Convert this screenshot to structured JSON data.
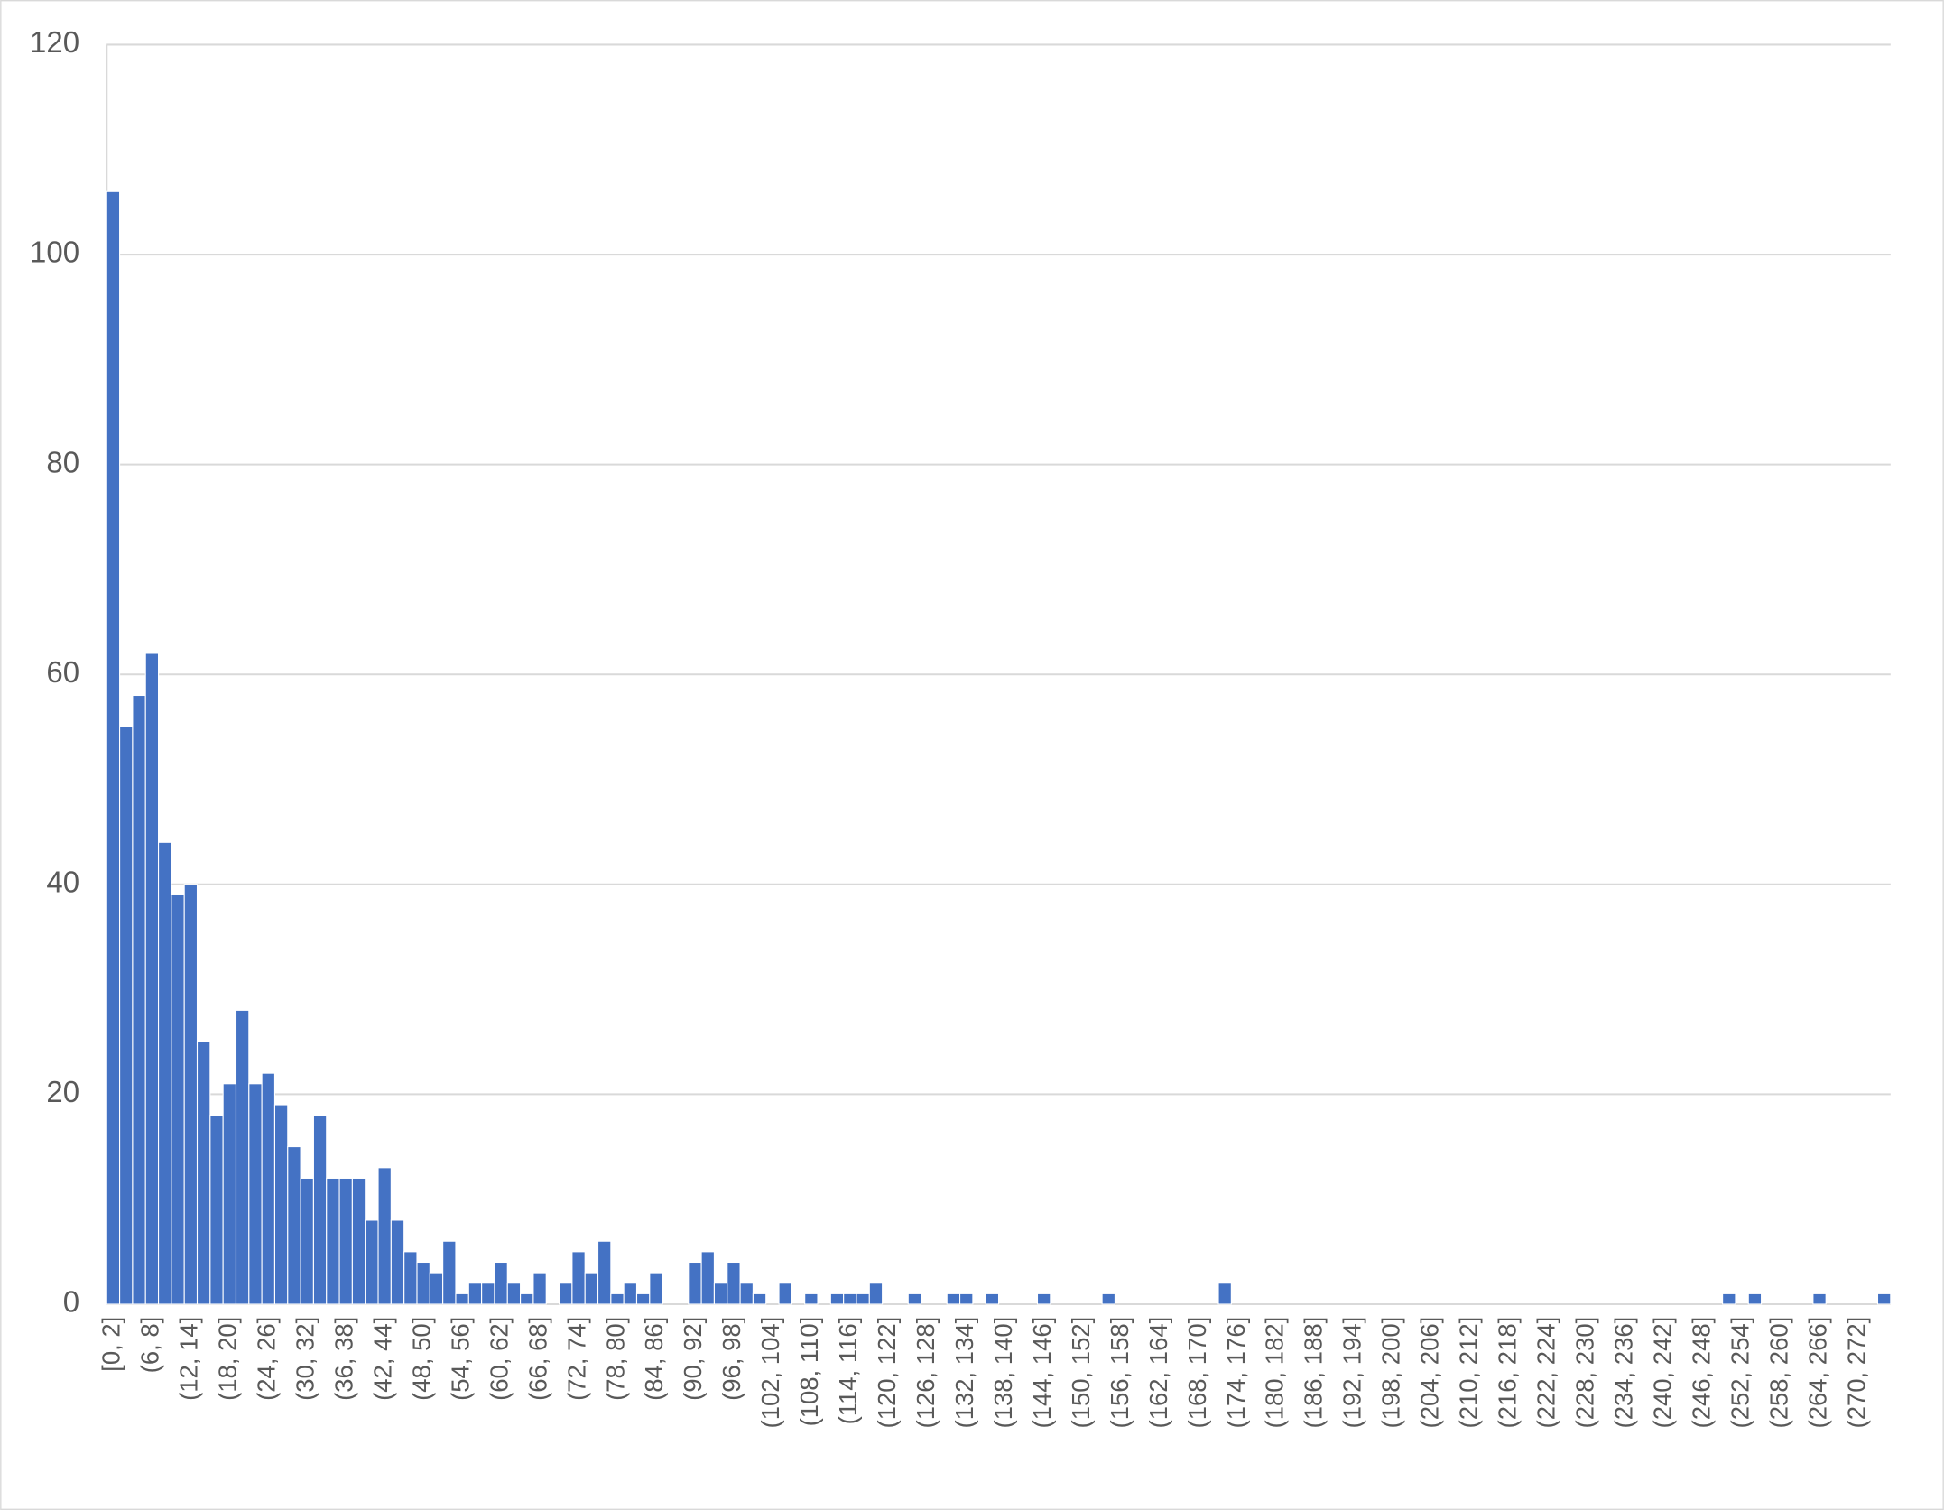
{
  "chart_data": {
    "type": "histogram",
    "categories": [
      "[0, 2]",
      null,
      null,
      "(6, 8]",
      null,
      null,
      "(12, 14]",
      null,
      null,
      "(18, 20]",
      null,
      null,
      "(24, 26]",
      null,
      null,
      "(30, 32]",
      null,
      null,
      "(36, 38]",
      null,
      null,
      "(42, 44]",
      null,
      null,
      "(48, 50]",
      null,
      null,
      "(54, 56]",
      null,
      null,
      "(60, 62]",
      null,
      null,
      "(66, 68]",
      null,
      null,
      "(72, 74]",
      null,
      null,
      "(78, 80]",
      null,
      null,
      "(84, 86]",
      null,
      null,
      "(90, 92]",
      null,
      null,
      "(96, 98]",
      null,
      null,
      "(102, 104]",
      null,
      null,
      "(108, 110]",
      null,
      null,
      "(114, 116]",
      null,
      null,
      "(120, 122]",
      null,
      null,
      "(126, 128]",
      null,
      null,
      "(132, 134]",
      null,
      null,
      "(138, 140]",
      null,
      null,
      "(144, 146]",
      null,
      null,
      "(150, 152]",
      null,
      null,
      "(156, 158]",
      null,
      null,
      "(162, 164]",
      null,
      null,
      "(168, 170]",
      null,
      null,
      "(174, 176]",
      null,
      null,
      "(180, 182]",
      null,
      null,
      "(186, 188]",
      null,
      null,
      "(192, 194]",
      null,
      null,
      "(198, 200]",
      null,
      null,
      "(204, 206]",
      null,
      null,
      "(210, 212]",
      null,
      null,
      "(216, 218]",
      null,
      null,
      "(222, 224]",
      null,
      null,
      "(228, 230]",
      null,
      null,
      "(234, 236]",
      null,
      null,
      "(240, 242]",
      null,
      null,
      "(246, 248]",
      null,
      null,
      "(252, 254]",
      null,
      null,
      "(258, 260]",
      null,
      null,
      "(264, 266]",
      null,
      null,
      "(270, 272]",
      null,
      null
    ],
    "bins": [
      0,
      2,
      4,
      6,
      8,
      10,
      12,
      14,
      16,
      18,
      20,
      22,
      24,
      26,
      28,
      30,
      32,
      34,
      36,
      38,
      40,
      42,
      44,
      46,
      48,
      50,
      52,
      54,
      56,
      58,
      60,
      62,
      64,
      66,
      68,
      70,
      72,
      74,
      76,
      78,
      80,
      82,
      84,
      86,
      88,
      90,
      92,
      94,
      96,
      98,
      100,
      102,
      104,
      106,
      108,
      110,
      112,
      114,
      116,
      118,
      120,
      122,
      124,
      126,
      128,
      130,
      132,
      134,
      136,
      138,
      140,
      142,
      144,
      146,
      148,
      150,
      152,
      154,
      156,
      158,
      160,
      162,
      164,
      166,
      168,
      170,
      172,
      174,
      176,
      178,
      180,
      182,
      184,
      186,
      188,
      190,
      192,
      194,
      196,
      198,
      200,
      202,
      204,
      206,
      208,
      210,
      212,
      214,
      216,
      218,
      220,
      222,
      224,
      226,
      228,
      230,
      232,
      234,
      236,
      238,
      240,
      242,
      244,
      246,
      248,
      250,
      252,
      254,
      256,
      258,
      260,
      262,
      264,
      266,
      268,
      270,
      272,
      274,
      276
    ],
    "values": [
      106,
      55,
      58,
      62,
      44,
      39,
      40,
      25,
      18,
      21,
      28,
      21,
      22,
      19,
      15,
      12,
      18,
      12,
      12,
      12,
      8,
      13,
      8,
      5,
      4,
      3,
      6,
      1,
      2,
      2,
      4,
      2,
      1,
      3,
      0,
      2,
      5,
      3,
      6,
      1,
      2,
      1,
      3,
      0,
      0,
      4,
      5,
      2,
      4,
      2,
      1,
      0,
      2,
      0,
      1,
      0,
      1,
      1,
      1,
      2,
      0,
      0,
      1,
      0,
      0,
      1,
      1,
      0,
      1,
      0,
      0,
      0,
      1,
      0,
      0,
      0,
      0,
      1,
      0,
      0,
      0,
      0,
      0,
      0,
      0,
      0,
      2,
      0,
      0,
      0,
      0,
      0,
      0,
      0,
      0,
      0,
      0,
      0,
      0,
      0,
      0,
      0,
      0,
      0,
      0,
      0,
      0,
      0,
      0,
      0,
      0,
      0,
      0,
      0,
      0,
      0,
      0,
      0,
      0,
      0,
      0,
      0,
      0,
      0,
      0,
      1,
      0,
      1,
      0,
      0,
      0,
      0,
      1,
      0,
      0,
      0,
      0,
      1
    ],
    "color": "#4472c4",
    "xlim": [
      0,
      276
    ],
    "ylim": [
      0,
      120
    ],
    "yticks": [
      0,
      20,
      40,
      60,
      80,
      100,
      120
    ],
    "grid": true
  }
}
